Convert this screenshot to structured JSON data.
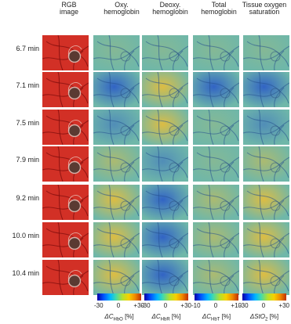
{
  "columns": [
    {
      "title": "RGB\nimage"
    },
    {
      "title": "Oxy.\nhemoglobin"
    },
    {
      "title": "Deoxy.\nhemoglobin"
    },
    {
      "title": "Total\nhemoglobin"
    },
    {
      "title": "Tissue oxygen\nsaturation"
    }
  ],
  "rows": [
    {
      "time": "6.7 min",
      "oxy": "neutral",
      "deoxy": "neutral",
      "total": "neutral",
      "sat": "neutral"
    },
    {
      "time": "7.1 min",
      "oxy": "decrease",
      "deoxy": "increase",
      "total": "decrease",
      "sat": "decrease"
    },
    {
      "time": "7.5 min",
      "oxy": "mild-decrease",
      "deoxy": "increase",
      "total": "neutral",
      "sat": "mild-decrease"
    },
    {
      "time": "7.9 min",
      "oxy": "mild-increase",
      "deoxy": "mild-decrease",
      "total": "neutral",
      "sat": "mild-increase"
    },
    {
      "time": "9.2 min",
      "oxy": "increase",
      "deoxy": "decrease",
      "total": "mild-increase",
      "sat": "increase"
    },
    {
      "time": "10.0 min",
      "oxy": "increase",
      "deoxy": "decrease",
      "total": "mild-increase",
      "sat": "increase"
    },
    {
      "time": "10.4 min",
      "oxy": "increase",
      "deoxy": "decrease",
      "total": "mild-increase",
      "sat": "increase"
    }
  ],
  "colorbars": [
    {
      "ticks": [
        "-30",
        "0",
        "+30"
      ],
      "label_sym": "ΔC",
      "label_sub": "HbO",
      "label_unit": " [%]"
    },
    {
      "ticks": [
        "-30",
        "0",
        "+30"
      ],
      "label_sym": "ΔC",
      "label_sub": "HbR",
      "label_unit": " [%]"
    },
    {
      "ticks": [
        "-10",
        "0",
        "+10"
      ],
      "label_sym": "ΔC",
      "label_sub": "HbT",
      "label_unit": " [%]"
    },
    {
      "ticks": [
        "-30",
        "0",
        "+30"
      ],
      "label_sym": "ΔStO",
      "label_sub": "2",
      "label_unit": " [%]"
    }
  ],
  "colors": {
    "tissue_red": "#c8241c",
    "neutral": "#6fb7a9",
    "increase": "#e2bd3e",
    "decrease": "#2e5fc6"
  }
}
